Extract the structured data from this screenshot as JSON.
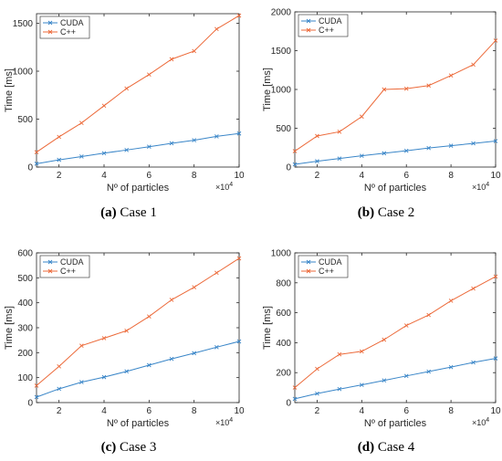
{
  "colors": {
    "cuda": "#3a86c8",
    "cpp": "#ec6a3a",
    "axis": "#262626",
    "grid": "#e6e6e6"
  },
  "shared": {
    "xlabel": "Nº of particles",
    "ylabel": "Time [ms]",
    "x_multiplier": "×10",
    "x_multiplier_exp": "4",
    "legend_cuda": "CUDA",
    "legend_cpp": "C++"
  },
  "chart_data": [
    {
      "type": "line",
      "caption_label": "(a)",
      "caption_text": "Case 1",
      "x": [
        1,
        2,
        3,
        4,
        5,
        6,
        7,
        8,
        9,
        10
      ],
      "xlim": [
        1,
        10
      ],
      "xticks": [
        2,
        4,
        6,
        8,
        10
      ],
      "ylim": [
        0,
        1600
      ],
      "yticks": [
        0,
        500,
        1000,
        1500
      ],
      "xlabel": "Nº of particles",
      "ylabel": "Time [ms]",
      "series": [
        {
          "name": "CUDA",
          "values": [
            35,
            75,
            110,
            145,
            178,
            212,
            248,
            280,
            320,
            350
          ]
        },
        {
          "name": "C++",
          "values": [
            155,
            315,
            460,
            640,
            820,
            965,
            1125,
            1210,
            1440,
            1580
          ]
        }
      ]
    },
    {
      "type": "line",
      "caption_label": "(b)",
      "caption_text": "Case 2",
      "x": [
        1,
        2,
        3,
        4,
        5,
        6,
        7,
        8,
        9,
        10
      ],
      "xlim": [
        1,
        10
      ],
      "xticks": [
        2,
        4,
        6,
        8,
        10
      ],
      "ylim": [
        0,
        2000
      ],
      "yticks": [
        0,
        500,
        1000,
        1500,
        2000
      ],
      "xlabel": "Nº of particles",
      "ylabel": "Time [ms]",
      "series": [
        {
          "name": "CUDA",
          "values": [
            35,
            75,
            110,
            145,
            178,
            210,
            245,
            275,
            305,
            335
          ]
        },
        {
          "name": "C++",
          "values": [
            205,
            400,
            455,
            650,
            1000,
            1010,
            1050,
            1180,
            1320,
            1630
          ]
        }
      ]
    },
    {
      "type": "line",
      "caption_label": "(c)",
      "caption_text": "Case 3",
      "x": [
        1,
        2,
        3,
        4,
        5,
        6,
        7,
        8,
        9,
        10
      ],
      "xlim": [
        1,
        10
      ],
      "xticks": [
        2,
        4,
        6,
        8,
        10
      ],
      "ylim": [
        0,
        600
      ],
      "yticks": [
        0,
        100,
        200,
        300,
        400,
        500,
        600
      ],
      "xlabel": "Nº of particles",
      "ylabel": "Time [ms]",
      "series": [
        {
          "name": "CUDA",
          "values": [
            22,
            55,
            82,
            102,
            125,
            150,
            175,
            198,
            222,
            245
          ]
        },
        {
          "name": "C++",
          "values": [
            68,
            145,
            228,
            258,
            288,
            345,
            412,
            462,
            520,
            578
          ]
        }
      ]
    },
    {
      "type": "line",
      "caption_label": "(d)",
      "caption_text": "Case 4",
      "x": [
        1,
        2,
        3,
        4,
        5,
        6,
        7,
        8,
        9,
        10
      ],
      "xlim": [
        1,
        10
      ],
      "xticks": [
        2,
        4,
        6,
        8,
        10
      ],
      "ylim": [
        0,
        1000
      ],
      "yticks": [
        0,
        200,
        400,
        600,
        800,
        1000
      ],
      "xlabel": "Nº of particles",
      "ylabel": "Time [ms]",
      "series": [
        {
          "name": "CUDA",
          "values": [
            25,
            60,
            90,
            118,
            148,
            178,
            207,
            237,
            268,
            295
          ]
        },
        {
          "name": "C++",
          "values": [
            100,
            225,
            322,
            342,
            420,
            515,
            585,
            680,
            762,
            842
          ]
        }
      ]
    }
  ]
}
